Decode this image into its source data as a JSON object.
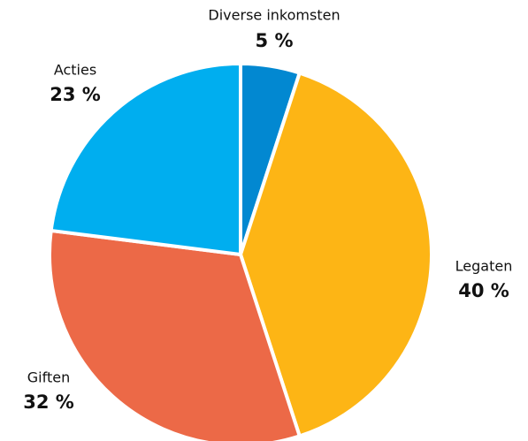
{
  "chart_data": {
    "type": "pie",
    "categories": [
      "Diverse inkomsten",
      "Legaten",
      "Giften",
      "Acties"
    ],
    "values": [
      5,
      40,
      32,
      23
    ],
    "value_labels": [
      "5 %",
      "40 %",
      "32 %",
      "23 %"
    ],
    "colors": [
      "#0288d1",
      "#fdb515",
      "#ec6947",
      "#00aeef"
    ]
  }
}
